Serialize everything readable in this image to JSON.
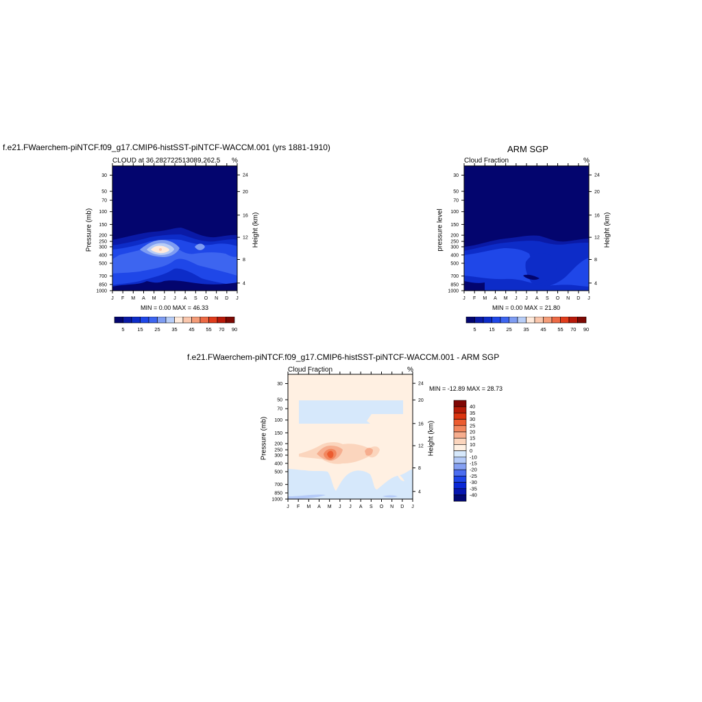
{
  "colors": {
    "seq": [
      "#03056e",
      "#0a1aa6",
      "#0d2cc8",
      "#1f47e8",
      "#3d65f0",
      "#7e9cf2",
      "#b8cdf6",
      "#ffeadb",
      "#f9c6ac",
      "#f49c78",
      "#ed6a45",
      "#e03c1c",
      "#b81a0a",
      "#7d0904"
    ],
    "diff": [
      "#020873",
      "#0616b0",
      "#0a27d6",
      "#1e44e8",
      "#4c6df0",
      "#85a0f3",
      "#b4caf8",
      "#d6e8fb",
      "#fff0e2",
      "#fbd5bd",
      "#f6ad8e",
      "#f2875f",
      "#ec5c30",
      "#db3511",
      "#b61b08",
      "#7f0604"
    ]
  },
  "panel1": {
    "title": "f.e21.FWaerchem-piNTCF.f09_g17.CMIP6-histSST-piNTCF-WACCM.001 (yrs 1881-1910)",
    "subtitle_left": "CLOUD at 36.282722513089,262.5",
    "subtitle_right": "%",
    "ylabel": "Pressure (mb)",
    "ylabel_right": "Height (km)",
    "minmax": "MIN =   0.00 MAX =  46.33"
  },
  "panel2": {
    "title": "ARM SGP",
    "subtitle_left": "Cloud Fraction",
    "subtitle_right": "%",
    "ylabel": "pressure level",
    "ylabel_right": "Height (km)",
    "minmax": "MIN =   0.00 MAX =  21.80"
  },
  "panel3": {
    "title": "f.e21.FWaerchem-piNTCF.f09_g17.CMIP6-histSST-piNTCF-WACCM.001 - ARM SGP",
    "subtitle_left": "Cloud Fraction",
    "subtitle_right": "%",
    "ylabel": "Pressure (mb)",
    "ylabel_right": "Height (km)",
    "minmax": "MIN = -12.89 MAX =  28.73"
  },
  "chart_data": [
    {
      "type": "heatmap",
      "title": "CLOUD at 36.282722513089,262.5",
      "x": [
        "J",
        "F",
        "M",
        "A",
        "M",
        "J",
        "J",
        "A",
        "S",
        "O",
        "N",
        "D",
        "J"
      ],
      "y_ticks": [
        "30",
        "50",
        "70",
        "100",
        "150",
        "200",
        "250",
        "300",
        "400",
        "500",
        "700",
        "850",
        "1000"
      ],
      "y_right_ticks": [
        "24",
        "20",
        "16",
        "12",
        "8",
        "4"
      ],
      "ylabel": "Pressure (mb)",
      "colorbar_labels": [
        "5",
        "15",
        "25",
        "35",
        "45",
        "55",
        "70",
        "90"
      ],
      "min": 0.0,
      "max": 46.33
    },
    {
      "type": "heatmap",
      "title": "ARM SGP",
      "x": [
        "J",
        "F",
        "M",
        "A",
        "M",
        "J",
        "J",
        "A",
        "S",
        "O",
        "N",
        "D",
        "J"
      ],
      "y_ticks": [
        "30",
        "50",
        "70",
        "100",
        "150",
        "200",
        "250",
        "300",
        "400",
        "500",
        "700",
        "850",
        "1000"
      ],
      "y_right_ticks": [
        "24",
        "20",
        "16",
        "12",
        "8",
        "4"
      ],
      "ylabel": "pressure level",
      "colorbar_labels": [
        "5",
        "15",
        "25",
        "35",
        "45",
        "55",
        "70",
        "90"
      ],
      "min": 0.0,
      "max": 21.8
    },
    {
      "type": "heatmap",
      "title": "f.e21.FWaerchem-piNTCF.f09_g17.CMIP6-histSST-piNTCF-WACCM.001 - ARM SGP",
      "x": [
        "J",
        "F",
        "M",
        "A",
        "M",
        "J",
        "J",
        "A",
        "S",
        "O",
        "N",
        "D",
        "J"
      ],
      "y_ticks": [
        "30",
        "50",
        "70",
        "100",
        "150",
        "200",
        "250",
        "300",
        "400",
        "500",
        "700",
        "850",
        "1000"
      ],
      "y_right_ticks": [
        "24",
        "20",
        "16",
        "12",
        "8",
        "4"
      ],
      "ylabel": "Pressure (mb)",
      "colorbar_labels": [
        "40",
        "35",
        "30",
        "25",
        "20",
        "15",
        "10",
        "0",
        "-10",
        "-15",
        "-20",
        "-25",
        "-30",
        "-35",
        "-40"
      ],
      "min": -12.89,
      "max": 28.73
    }
  ]
}
